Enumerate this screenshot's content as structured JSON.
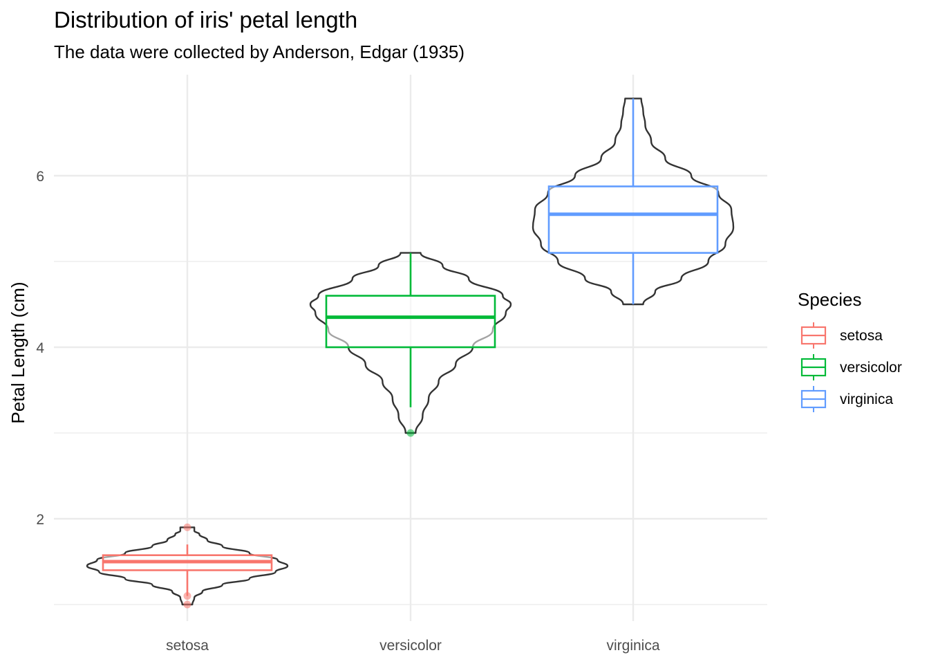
{
  "chart_data": {
    "type": "violin+boxplot",
    "title": "Distribution of iris' petal length",
    "subtitle": "The data were collected by Anderson, Edgar (1935)",
    "xlabel": "",
    "ylabel": "Petal Length (cm)",
    "categories": [
      "setosa",
      "versicolor",
      "virginica"
    ],
    "ylim": [
      1.0,
      6.9
    ],
    "y_ticks": [
      "2",
      "4",
      "6"
    ],
    "grid": true,
    "legend": {
      "title": "Species",
      "position": "right",
      "entries": [
        "setosa",
        "versicolor",
        "virginica"
      ]
    },
    "colors": {
      "setosa": "#F8766D",
      "versicolor": "#00BA38",
      "virginica": "#619CFF",
      "violin": "#333333"
    },
    "series": [
      {
        "name": "setosa",
        "box": {
          "min": 1.1,
          "q1": 1.4,
          "median": 1.5,
          "q3": 1.575,
          "max": 1.7
        },
        "outliers": [
          1.0,
          1.1,
          1.9
        ],
        "violin": {
          "y": [
            1.0,
            1.08,
            1.15,
            1.23,
            1.3,
            1.38,
            1.45,
            1.52,
            1.6,
            1.68,
            1.75,
            1.82,
            1.86,
            1.9
          ],
          "density": [
            0.05,
            0.07,
            0.15,
            0.35,
            0.62,
            0.88,
            1.0,
            0.9,
            0.62,
            0.35,
            0.2,
            0.12,
            0.07,
            0.07
          ]
        }
      },
      {
        "name": "versicolor",
        "box": {
          "min": 3.3,
          "q1": 4.0,
          "median": 4.35,
          "q3": 4.6,
          "max": 5.1
        },
        "outliers": [
          3.0
        ],
        "violin": {
          "y": [
            3.0,
            3.2,
            3.4,
            3.6,
            3.8,
            4.0,
            4.2,
            4.4,
            4.5,
            4.6,
            4.8,
            4.95,
            5.1
          ],
          "density": [
            0.05,
            0.12,
            0.18,
            0.28,
            0.45,
            0.62,
            0.82,
            0.95,
            1.0,
            0.92,
            0.58,
            0.32,
            0.1
          ]
        }
      },
      {
        "name": "virginica",
        "box": {
          "min": 4.5,
          "q1": 5.1,
          "median": 5.55,
          "q3": 5.875,
          "max": 6.9
        },
        "outliers": [],
        "violin": {
          "y": [
            4.5,
            4.65,
            4.8,
            5.0,
            5.2,
            5.4,
            5.6,
            5.8,
            6.0,
            6.2,
            6.4,
            6.6,
            6.75,
            6.9
          ],
          "density": [
            0.1,
            0.22,
            0.48,
            0.75,
            0.92,
            1.0,
            0.98,
            0.85,
            0.58,
            0.32,
            0.18,
            0.12,
            0.1,
            0.08
          ]
        }
      }
    ]
  }
}
